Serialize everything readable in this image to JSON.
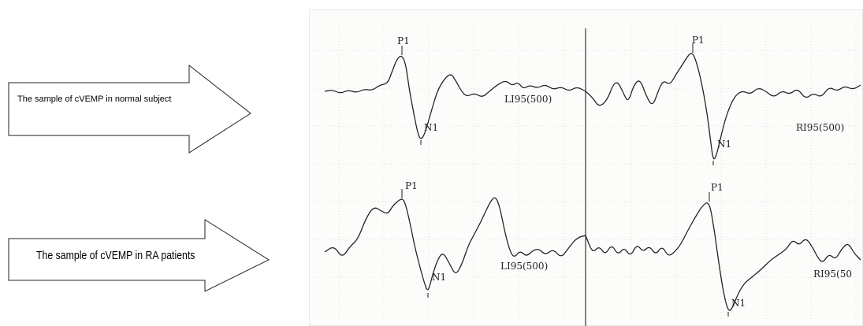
{
  "arrows": {
    "normal": {
      "label": "The sample of cVEMP in normal subject"
    },
    "ra": {
      "label": "The sample of cVEMP in RA patients"
    }
  },
  "chart_data": {
    "type": "line",
    "title": "",
    "xlabel": "",
    "ylabel": "",
    "grid": true,
    "panels": [
      {
        "row": "normal",
        "side": "left",
        "channel": "LI95(500)",
        "peaks": [
          {
            "label": "P1"
          },
          {
            "label": "N1"
          }
        ]
      },
      {
        "row": "normal",
        "side": "right",
        "channel": "RI95(500)",
        "peaks": [
          {
            "label": "P1"
          },
          {
            "label": "N1"
          }
        ]
      },
      {
        "row": "ra",
        "side": "left",
        "channel": "LI95(500)",
        "peaks": [
          {
            "label": "P1"
          },
          {
            "label": "N1"
          }
        ]
      },
      {
        "row": "ra",
        "side": "right",
        "channel": "RI95(50",
        "peaks": [
          {
            "label": "P1"
          },
          {
            "label": "N1"
          }
        ]
      }
    ]
  }
}
